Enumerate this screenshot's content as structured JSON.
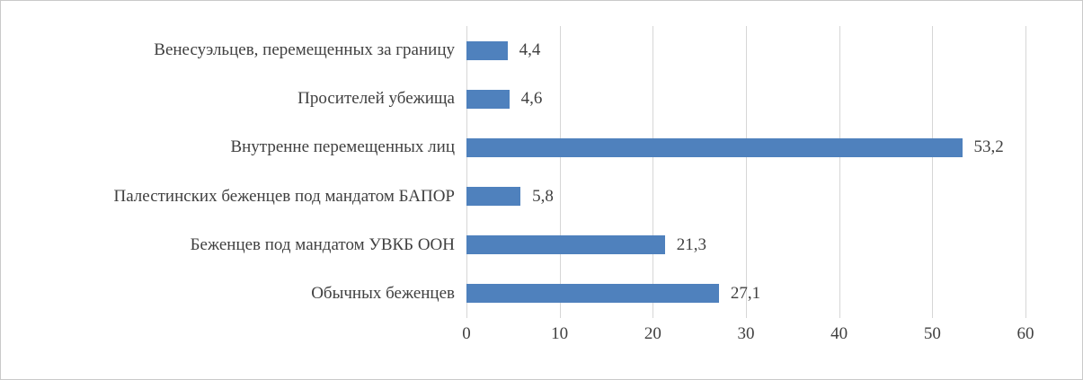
{
  "frame": {
    "background": "#ffffff",
    "border_color": "#c9c9c9"
  },
  "chart_data": {
    "type": "bar",
    "orientation": "horizontal",
    "title": "",
    "xlabel": "",
    "ylabel": "",
    "categories": [
      "Венесуэльцев, перемещенных за границу",
      "Просителей убежища",
      "Внутренне перемещенных лиц",
      "Палестинских беженцев под мандатом БАПОР",
      "Беженцев под мандатом УВКБ ООН",
      "Обычных беженцев"
    ],
    "values": [
      4.4,
      4.6,
      53.2,
      5.8,
      21.3,
      27.1
    ],
    "value_labels": [
      "4,4",
      "4,6",
      "53,2",
      "5,8",
      "21,3",
      "27,1"
    ],
    "xlim": [
      0,
      60
    ],
    "xticks": [
      0,
      10,
      20,
      30,
      40,
      50,
      60
    ],
    "xtick_labels": [
      "0",
      "10",
      "20",
      "30",
      "40",
      "50",
      "60"
    ],
    "bar_color": "#4f81bd",
    "gridline_color": "#d6d6d6",
    "grid": "vertical",
    "legend": "none"
  }
}
